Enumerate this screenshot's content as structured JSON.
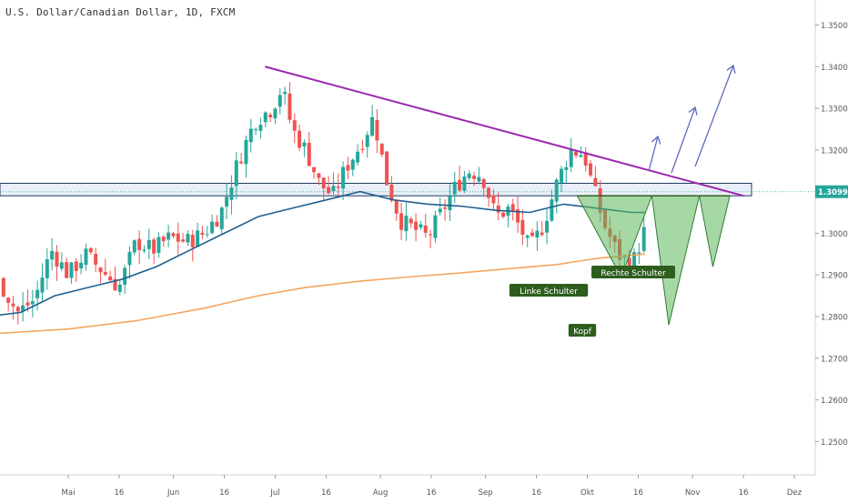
{
  "chart_data": {
    "type": "candlestick",
    "title": "U.S. Dollar/Canadian Dollar, 1D, FXCM",
    "price_axis": {
      "range": [
        1.242,
        1.356
      ],
      "ticks": [
        "1.35000",
        "1.34000",
        "1.33000",
        "1.32000",
        "1.30000",
        "1.29000",
        "1.28000",
        "1.27000",
        "1.26000",
        "1.25000"
      ],
      "tick_values": [
        1.35,
        1.34,
        1.33,
        1.32,
        1.3,
        1.29,
        1.28,
        1.27,
        1.26,
        1.25
      ],
      "current_price": "1.30998"
    },
    "time_axis": {
      "labels": [
        "Mai",
        "16",
        "Jun",
        "16",
        "Jul",
        "16",
        "Aug",
        "16",
        "Sep",
        "16",
        "Okt",
        "16",
        "Nov",
        "16",
        "Dez"
      ],
      "label_days": [
        0,
        15,
        31,
        46,
        61,
        76,
        92,
        107,
        123,
        138,
        153,
        168,
        184,
        199,
        214
      ]
    },
    "colors": {
      "up": "#26a69a",
      "down": "#ef5350",
      "ma_fast": "#1f5f8f",
      "ma_slow": "#f4a460",
      "trendline": "#9c27b0",
      "zone": "#1e3a5f",
      "pattern_fill": "#5cb85c",
      "arrow": "#5c6bc0",
      "label_bg": "#2e5e1e"
    },
    "candles_ohlc": [],
    "trendline_endpoints": [
      [
        58,
        1.34
      ],
      [
        199,
        1.309
      ]
    ],
    "resistance_zone": [
      1.309,
      1.312
    ],
    "pattern_labels": [
      "Linke Schulter",
      "Kopf",
      "Rechte Schulter"
    ]
  }
}
